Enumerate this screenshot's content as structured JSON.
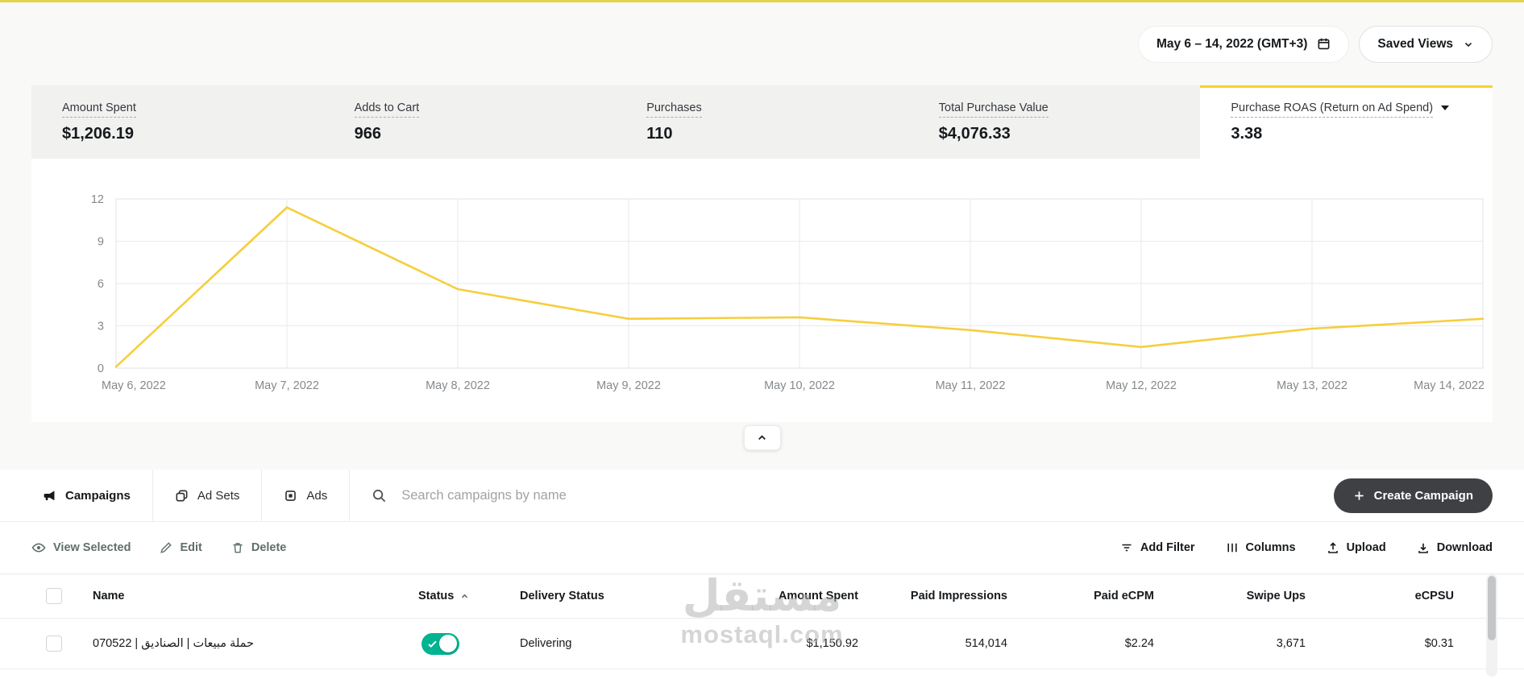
{
  "accent": {
    "yellow": "#F8D12E",
    "green": "#00B491",
    "dark": "#3E4043"
  },
  "topbar": {
    "date_range": "May 6 – 14, 2022 (GMT+3)",
    "saved_views_label": "Saved Views"
  },
  "metrics": {
    "cards": [
      {
        "label": "Amount Spent",
        "value": "$1,206.19"
      },
      {
        "label": "Adds to Cart",
        "value": "966"
      },
      {
        "label": "Purchases",
        "value": "110"
      },
      {
        "label": "Total Purchase Value",
        "value": "$4,076.33"
      },
      {
        "label": "Purchase ROAS (Return on Ad Spend)",
        "value": "3.38"
      }
    ]
  },
  "chart_data": {
    "type": "line",
    "title": "Purchase ROAS (Return on Ad Spend)",
    "x": [
      "May 6, 2022",
      "May 7, 2022",
      "May 8, 2022",
      "May 9, 2022",
      "May 10, 2022",
      "May 11, 2022",
      "May 12, 2022",
      "May 13, 2022",
      "May 14, 2022"
    ],
    "series": [
      {
        "name": "Purchase ROAS (Return on Ad Spend)",
        "values": [
          0.1,
          11.4,
          5.6,
          3.5,
          3.6,
          2.7,
          1.5,
          2.8,
          3.5
        ]
      }
    ],
    "xlabel": "",
    "ylabel": "",
    "ylim": [
      0,
      12
    ],
    "yticks": [
      0,
      3,
      6,
      9,
      12
    ],
    "grid": true,
    "legend": "none",
    "line_color": "#F6CE3D"
  },
  "toolbar": {
    "tabs": [
      {
        "label": "Campaigns",
        "active": true
      },
      {
        "label": "Ad Sets",
        "active": false
      },
      {
        "label": "Ads",
        "active": false
      }
    ],
    "search_placeholder": "Search campaigns by name",
    "create_button_label": "Create Campaign"
  },
  "actions": {
    "view_selected": "View Selected",
    "edit": "Edit",
    "delete": "Delete",
    "add_filter": "Add Filter",
    "columns": "Columns",
    "upload": "Upload",
    "download": "Download"
  },
  "table": {
    "columns": [
      "Name",
      "Status",
      "Delivery Status",
      "Amount Spent",
      "Paid Impressions",
      "Paid eCPM",
      "Swipe Ups",
      "eCPSU"
    ],
    "rows": [
      {
        "name": "حملة مبيعات | الصناديق | 070522",
        "status_on": true,
        "delivery_status": "Delivering",
        "amount_spent": "$1,150.92",
        "paid_impressions": "514,014",
        "paid_ecpm": "$2.24",
        "swipe_ups": "3,671",
        "ecpsu": "$0.31"
      }
    ]
  },
  "watermark": {
    "line1": "مستقل",
    "line2": "mostaql.com"
  }
}
